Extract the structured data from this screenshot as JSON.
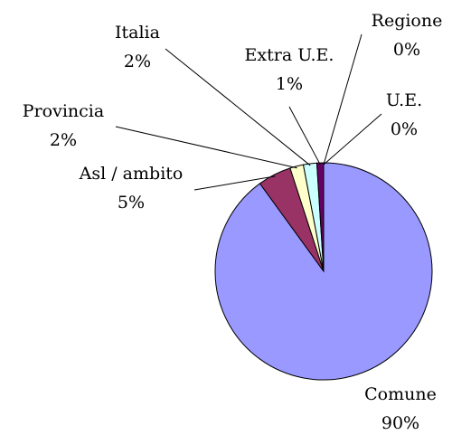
{
  "chart_data": {
    "type": "pie",
    "categories": [
      "Comune",
      "Asl / ambito",
      "Provincia",
      "Italia",
      "Extra U.E.",
      "Regione",
      "U.E."
    ],
    "values": [
      90,
      5,
      2,
      2,
      1,
      0,
      0
    ],
    "value_labels": [
      "90%",
      "5%",
      "2%",
      "2%",
      "1%",
      "0%",
      "0%"
    ],
    "colors": [
      "#9999ff",
      "#993366",
      "#ffffcc",
      "#ccffff",
      "#660066",
      "#ff8080",
      "#0066cc"
    ]
  }
}
